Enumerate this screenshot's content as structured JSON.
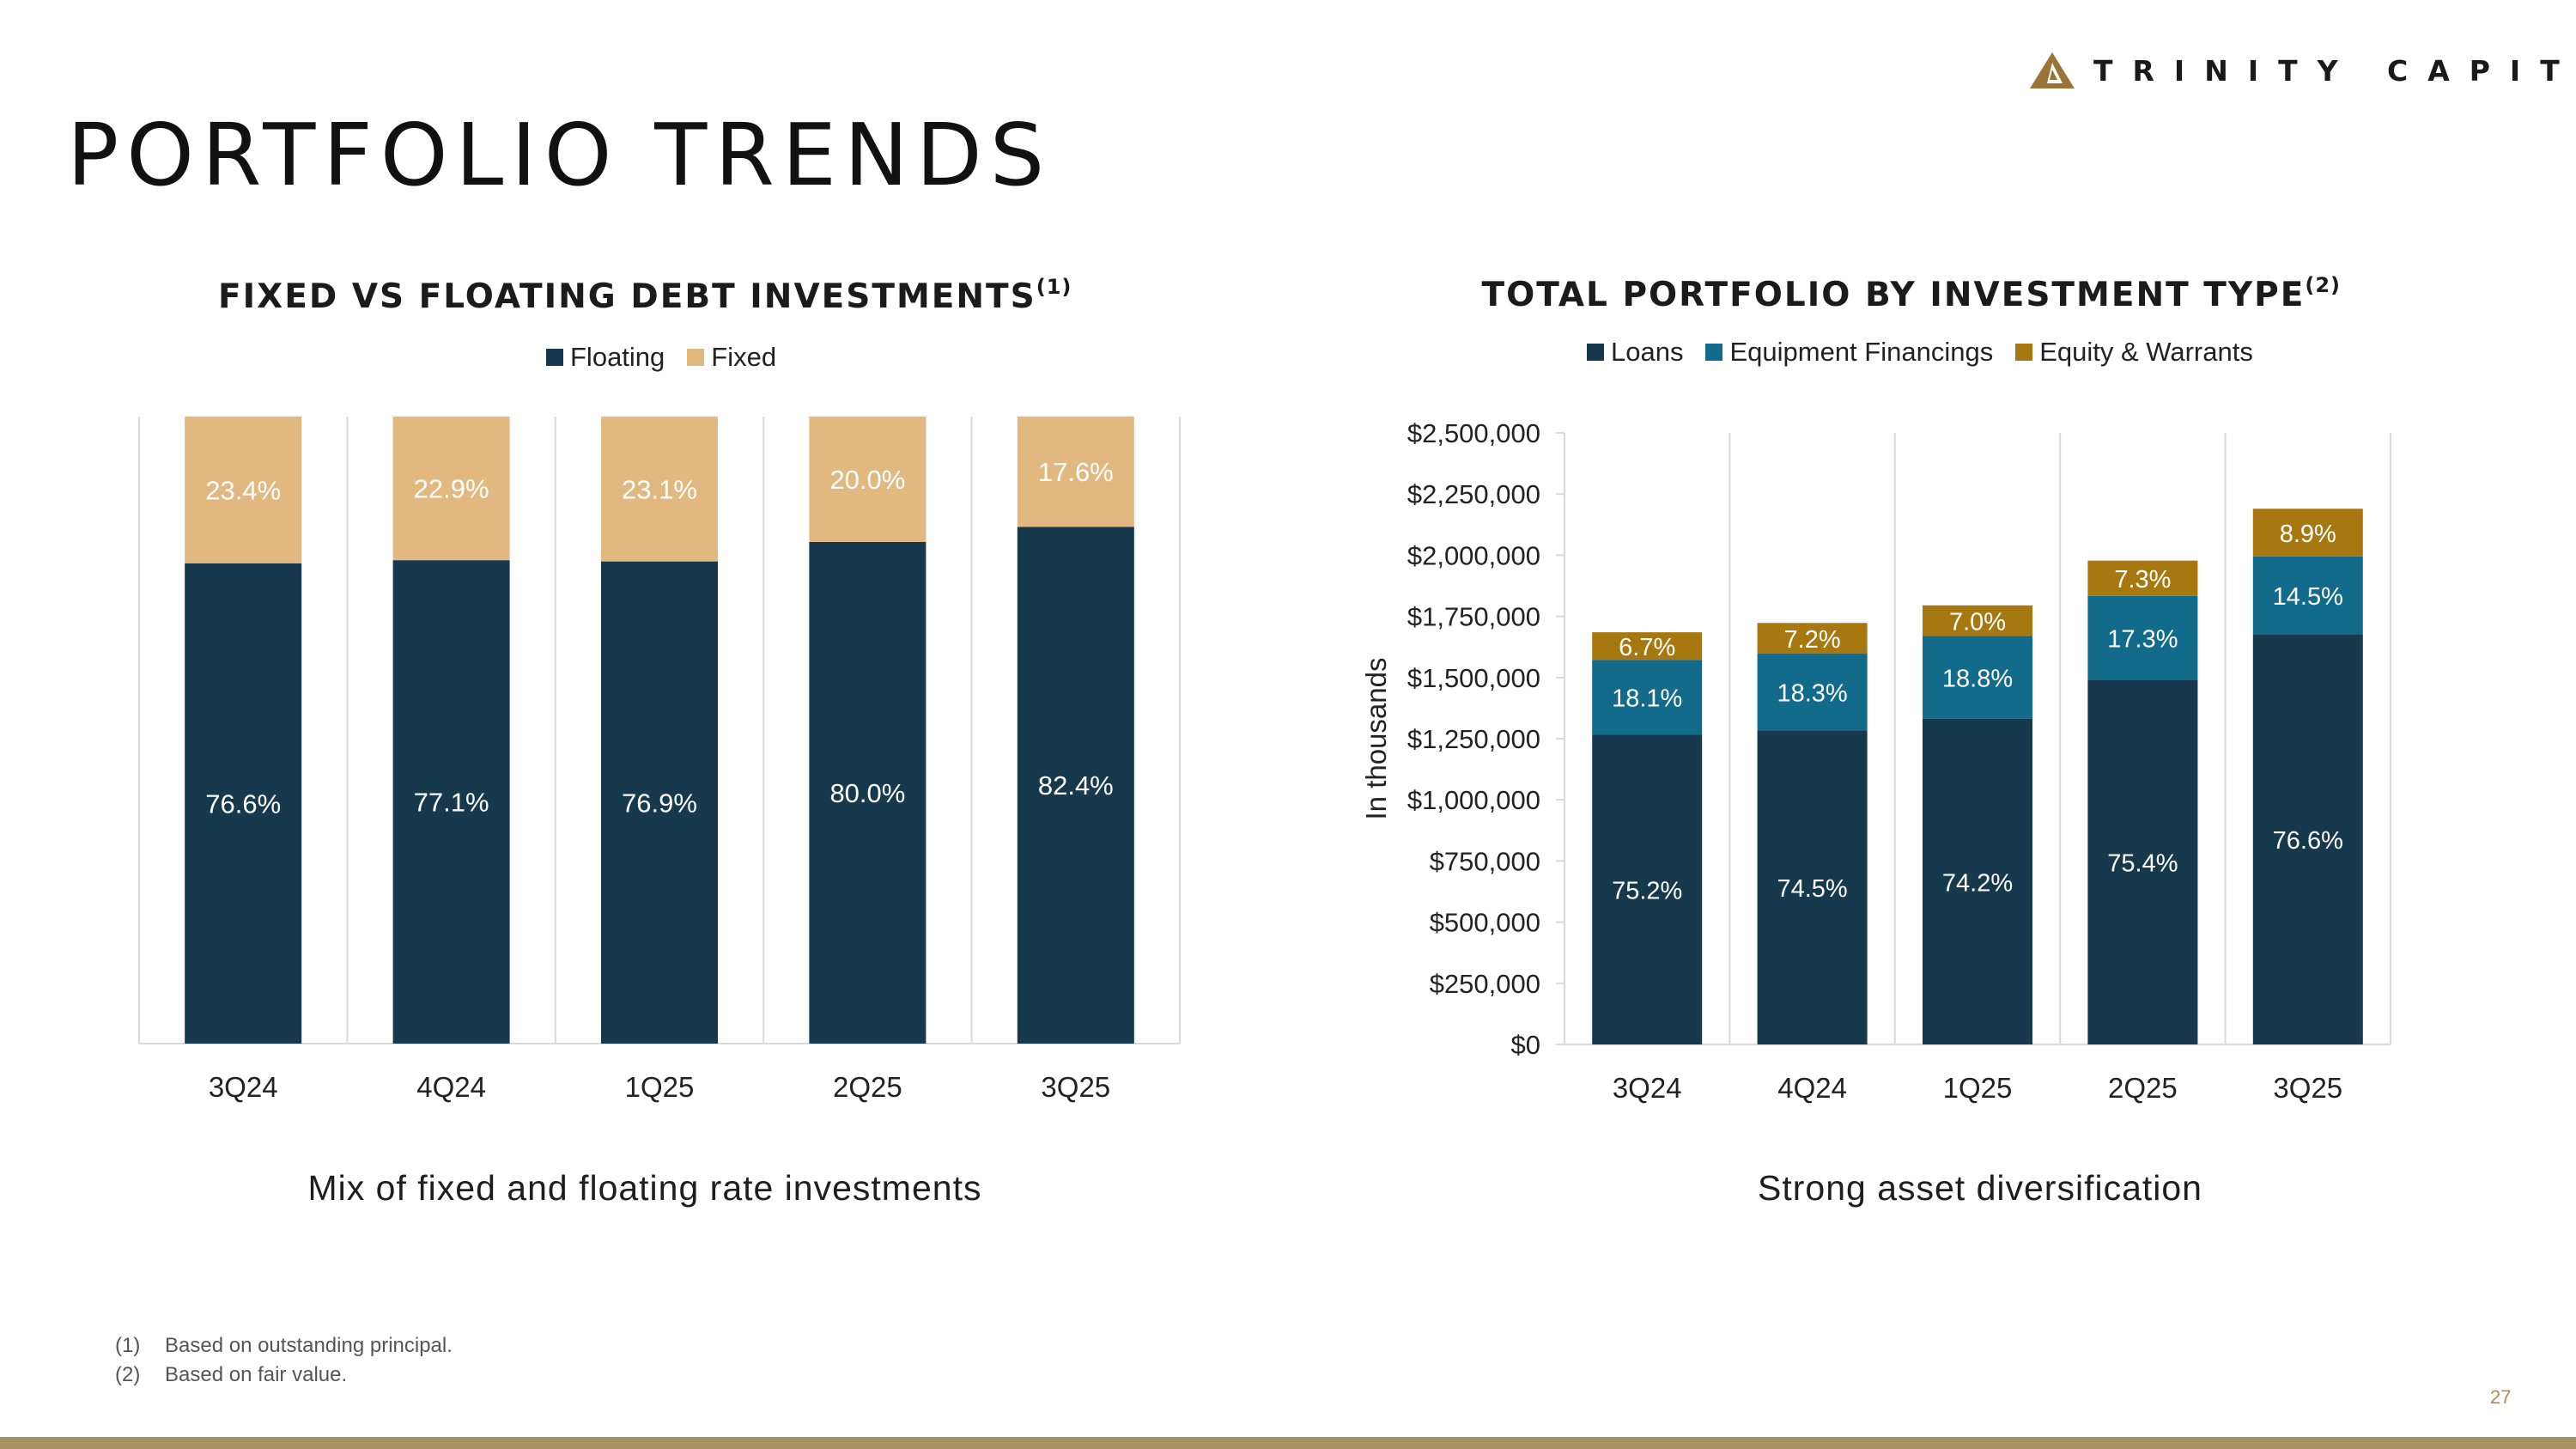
{
  "header": {
    "brand": "TRINITY CAPITAL",
    "page_title": "PORTFOLIO TRENDS"
  },
  "colors": {
    "floating": "#17394d",
    "fixed": "#e0b880",
    "loans": "#17394d",
    "equipment": "#136b8b",
    "equity": "#a87810",
    "gold_accent": "#a99266",
    "logo_gold": "#9a7436"
  },
  "charts": [
    {
      "title": "FIXED VS FLOATING DEBT INVESTMENTS",
      "title_note": "(1)",
      "legend": [
        "Floating",
        "Fixed"
      ],
      "caption": "Mix of fixed and floating rate investments"
    },
    {
      "title": "TOTAL PORTFOLIO BY INVESTMENT TYPE",
      "title_note": "(2)",
      "legend": [
        "Loans",
        "Equipment Financings",
        "Equity & Warrants"
      ],
      "caption": "Strong asset diversification"
    }
  ],
  "chart_data": [
    {
      "type": "bar",
      "stacked": true,
      "percent_stacked": true,
      "title": "FIXED VS FLOATING DEBT INVESTMENTS",
      "categories": [
        "3Q24",
        "4Q24",
        "1Q25",
        "2Q25",
        "3Q25"
      ],
      "series": [
        {
          "name": "Floating",
          "values": [
            76.6,
            77.1,
            76.9,
            80.0,
            82.4
          ],
          "labels": [
            "76.6%",
            "77.1%",
            "76.9%",
            "80.0%",
            "82.4%"
          ]
        },
        {
          "name": "Fixed",
          "values": [
            23.4,
            22.9,
            23.1,
            20.0,
            17.6
          ],
          "labels": [
            "23.4%",
            "22.9%",
            "23.1%",
            "20.0%",
            "17.6%"
          ]
        }
      ],
      "legend_position": "top",
      "grid": false
    },
    {
      "type": "bar",
      "stacked": true,
      "title": "TOTAL PORTFOLIO BY INVESTMENT TYPE",
      "ylabel": "In thousands",
      "ylim": [
        0,
        2500000
      ],
      "yticks": [
        0,
        250000,
        500000,
        750000,
        1000000,
        1250000,
        1500000,
        1750000,
        2000000,
        2250000,
        2500000
      ],
      "ytick_labels": [
        "$0",
        "$250,000",
        "$500,000",
        "$750,000",
        "$1,000,000",
        "$1,250,000",
        "$1,500,000",
        "$1,750,000",
        "$2,000,000",
        "$2,250,000",
        "$2,500,000"
      ],
      "categories": [
        "3Q24",
        "4Q24",
        "1Q25",
        "2Q25",
        "3Q25"
      ],
      "totals": [
        1685000,
        1723000,
        1795000,
        1978000,
        2190000
      ],
      "series": [
        {
          "name": "Loans",
          "percents": [
            75.2,
            74.5,
            74.2,
            75.4,
            76.6
          ],
          "labels": [
            "75.2%",
            "74.5%",
            "74.2%",
            "75.4%",
            "76.6%"
          ]
        },
        {
          "name": "Equipment Financings",
          "percents": [
            18.1,
            18.3,
            18.8,
            17.3,
            14.5
          ],
          "labels": [
            "18.1%",
            "18.3%",
            "18.8%",
            "17.3%",
            "14.5%"
          ]
        },
        {
          "name": "Equity & Warrants",
          "percents": [
            6.7,
            7.2,
            7.0,
            7.3,
            8.9
          ],
          "labels": [
            "6.7%",
            "7.2%",
            "7.0%",
            "7.3%",
            "8.9%"
          ]
        }
      ],
      "legend_position": "top",
      "grid": "vertical category dividers"
    }
  ],
  "footnotes": [
    {
      "num": "(1)",
      "text": "Based on outstanding principal."
    },
    {
      "num": "(2)",
      "text": "Based on fair value."
    }
  ],
  "page_number": "27"
}
